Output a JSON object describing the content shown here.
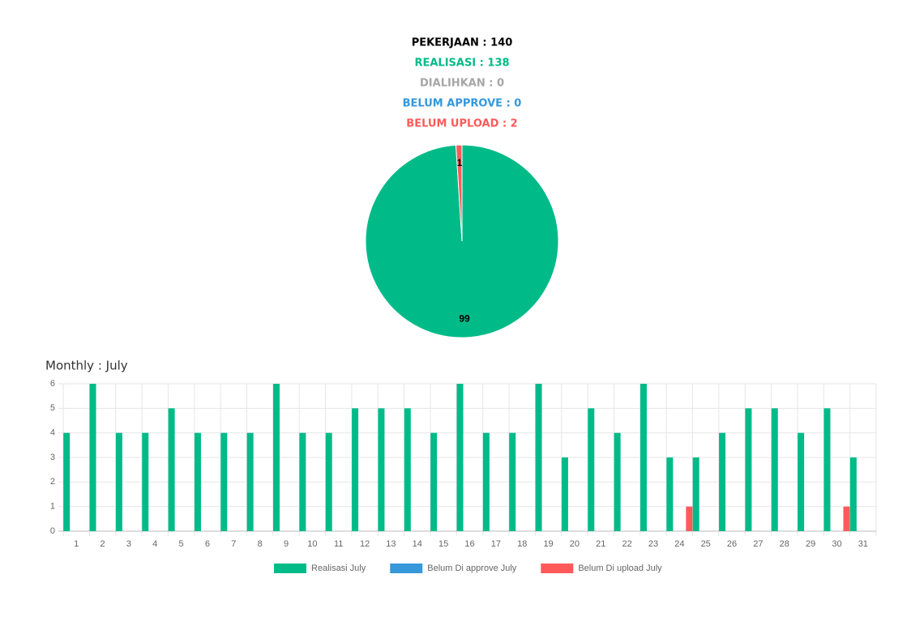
{
  "summary": {
    "lines": [
      "PEKERJAAN : 140",
      "REALISASI : 138",
      "DIALIHKAN : 0",
      "BELUM APPROVE : 0",
      "BELUM UPLOAD : 2"
    ],
    "colors": [
      "#000000",
      "#00bb88",
      "#a6a6a6",
      "#3498db",
      "#ff5a5a"
    ]
  },
  "chart_data": [
    {
      "type": "pie",
      "values": [
        99,
        1
      ],
      "colors": [
        "#00bb88",
        "#ff5a5a"
      ]
    },
    {
      "type": "bar",
      "title": "Monthly : July",
      "categories": [
        "1",
        "2",
        "3",
        "4",
        "5",
        "6",
        "7",
        "8",
        "9",
        "10",
        "11",
        "12",
        "13",
        "14",
        "15",
        "16",
        "17",
        "18",
        "19",
        "20",
        "21",
        "22",
        "23",
        "24",
        "25",
        "26",
        "27",
        "28",
        "29",
        "30",
        "31"
      ],
      "series": [
        {
          "name": "Realisasi July",
          "color": "#00bb88",
          "values": [
            4,
            6,
            4,
            4,
            5,
            4,
            4,
            4,
            6,
            4,
            4,
            5,
            5,
            5,
            4,
            6,
            4,
            4,
            6,
            3,
            5,
            4,
            6,
            3,
            3,
            4,
            5,
            5,
            4,
            5,
            3
          ]
        },
        {
          "name": "Belum Di approve July",
          "color": "#3498db",
          "values": [
            0,
            0,
            0,
            0,
            0,
            0,
            0,
            0,
            0,
            0,
            0,
            0,
            0,
            0,
            0,
            0,
            0,
            0,
            0,
            0,
            0,
            0,
            0,
            0,
            0,
            0,
            0,
            0,
            0,
            0,
            0
          ]
        },
        {
          "name": "Belum Di upload July",
          "color": "#ff5a5a",
          "values": [
            0,
            0,
            0,
            0,
            0,
            0,
            0,
            0,
            0,
            0,
            0,
            0,
            0,
            0,
            0,
            0,
            0,
            0,
            0,
            0,
            0,
            0,
            0,
            1,
            0,
            0,
            0,
            0,
            0,
            1,
            0
          ]
        }
      ],
      "ylim": [
        0,
        6
      ],
      "yticks": [
        0,
        1,
        2,
        3,
        4,
        5,
        6
      ],
      "grid": true
    }
  ]
}
